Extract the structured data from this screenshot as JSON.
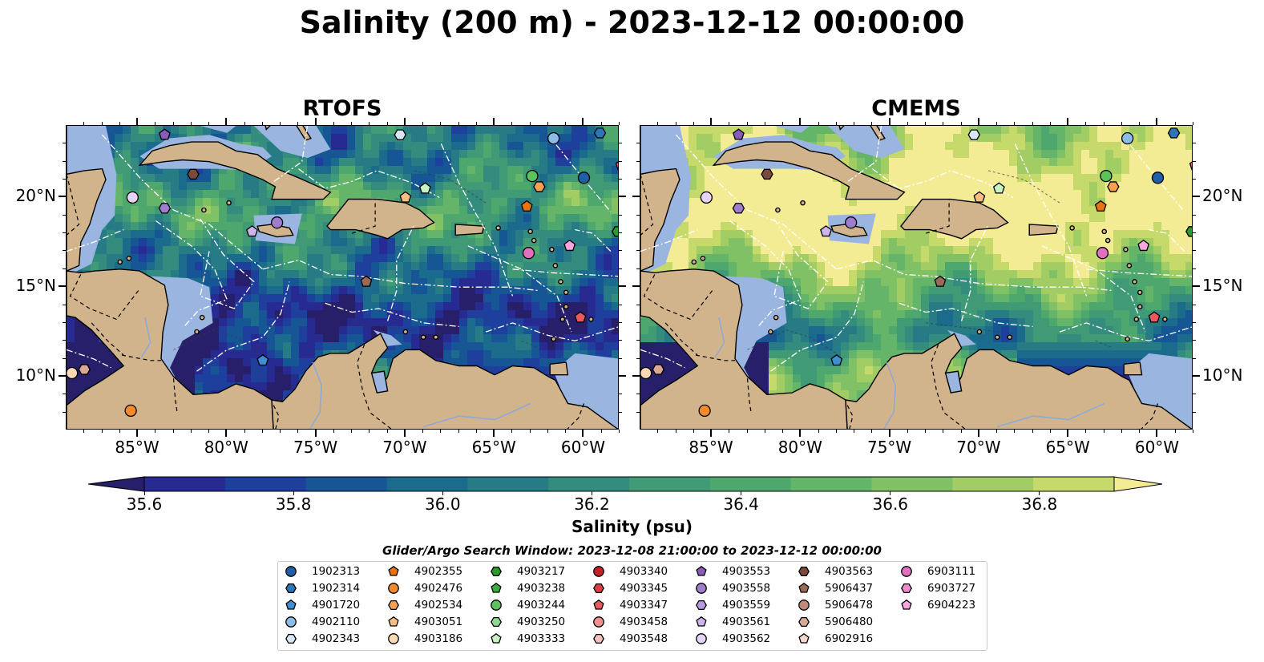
{
  "title": "Salinity (200 m) - 2023-12-12 00:00:00",
  "panels": [
    {
      "title": "RTOFS",
      "key": "rtofs"
    },
    {
      "title": "CMEMS",
      "key": "cmems"
    }
  ],
  "map": {
    "lon_range": [
      -89,
      -58
    ],
    "lat_range": [
      7,
      24
    ],
    "lon_ticks": [
      "85°W",
      "80°W",
      "75°W",
      "70°W",
      "65°W",
      "60°W"
    ],
    "lat_ticks": [
      "20°N",
      "15°N",
      "10°N"
    ],
    "land_color": "#d2b48c",
    "shelf_color": "#9ab5e0"
  },
  "colorbar": {
    "label": "Salinity (psu)",
    "range": [
      35.55,
      36.95
    ],
    "ticks": [
      "35.6",
      "35.8",
      "36.0",
      "36.2",
      "36.4",
      "36.6",
      "36.8"
    ],
    "colors": [
      "#281f6a",
      "#272a90",
      "#1f3f9c",
      "#165695",
      "#1a6b8c",
      "#267b85",
      "#338c7e",
      "#3f9a75",
      "#4ea86e",
      "#64b56a",
      "#80c166",
      "#a2cd65",
      "#c6da6c",
      "#f4ec94"
    ]
  },
  "legend": {
    "title": "Glider/Argo Search Window: 2023-12-08 21:00:00 to 2023-12-12 00:00:00",
    "items": [
      {
        "label": "1902313",
        "marker": "circle",
        "color": "#1f5fa8"
      },
      {
        "label": "1902314",
        "marker": "hexagon",
        "color": "#2e74b8"
      },
      {
        "label": "4901720",
        "marker": "pentagon",
        "color": "#3f8fd0"
      },
      {
        "label": "4902110",
        "marker": "circle",
        "color": "#8cbce8"
      },
      {
        "label": "4902343",
        "marker": "hexagon",
        "color": "#d6e8f8"
      },
      {
        "label": "4902355",
        "marker": "pentagon",
        "color": "#e8730c"
      },
      {
        "label": "4902476",
        "marker": "circle",
        "color": "#f48a2a"
      },
      {
        "label": "4902534",
        "marker": "hexagon",
        "color": "#f7a050"
      },
      {
        "label": "4903051",
        "marker": "pentagon",
        "color": "#fbbd82"
      },
      {
        "label": "4903186",
        "marker": "circle",
        "color": "#fdd9b5"
      },
      {
        "label": "4903217",
        "marker": "hexagon",
        "color": "#2a9a2a"
      },
      {
        "label": "4903238",
        "marker": "pentagon",
        "color": "#3cad3c"
      },
      {
        "label": "4903244",
        "marker": "circle",
        "color": "#5cc25c"
      },
      {
        "label": "4903250",
        "marker": "hexagon",
        "color": "#8fd88f"
      },
      {
        "label": "4903333",
        "marker": "pentagon",
        "color": "#c8f2c0"
      },
      {
        "label": "4903340",
        "marker": "circle",
        "color": "#c8202a"
      },
      {
        "label": "4903345",
        "marker": "hexagon",
        "color": "#dc3c44"
      },
      {
        "label": "4903347",
        "marker": "pentagon",
        "color": "#e85a60"
      },
      {
        "label": "4903458",
        "marker": "circle",
        "color": "#f2908e"
      },
      {
        "label": "4903548",
        "marker": "hexagon",
        "color": "#f8c0bc"
      },
      {
        "label": "4903553",
        "marker": "pentagon",
        "color": "#8a5ab8"
      },
      {
        "label": "4903558",
        "marker": "circle",
        "color": "#a07ccc"
      },
      {
        "label": "4903559",
        "marker": "hexagon",
        "color": "#b89ade"
      },
      {
        "label": "4903561",
        "marker": "pentagon",
        "color": "#cdb4ec"
      },
      {
        "label": "4903562",
        "marker": "circle",
        "color": "#e6d4f8"
      },
      {
        "label": "4903563",
        "marker": "hexagon",
        "color": "#7a4a3a"
      },
      {
        "label": "5906437",
        "marker": "pentagon",
        "color": "#9a6a58"
      },
      {
        "label": "5906478",
        "marker": "circle",
        "color": "#c08a7a"
      },
      {
        "label": "5906480",
        "marker": "hexagon",
        "color": "#d8a898"
      },
      {
        "label": "6902916",
        "marker": "pentagon",
        "color": "#f6d8cc"
      },
      {
        "label": "6903111",
        "marker": "circle",
        "color": "#e070c0"
      },
      {
        "label": "6903727",
        "marker": "hexagon",
        "color": "#ee8ad0"
      },
      {
        "label": "6904223",
        "marker": "pentagon",
        "color": "#f6a6dc"
      }
    ]
  },
  "floats": [
    {
      "lon": -83.5,
      "lat": 23.5,
      "marker": "pentagon",
      "color": "#8a5ab8"
    },
    {
      "lon": -70.3,
      "lat": 23.5,
      "marker": "hexagon",
      "color": "#d6e8f8"
    },
    {
      "lon": -61.7,
      "lat": 23.3,
      "marker": "circle",
      "color": "#8cbce8"
    },
    {
      "lon": -59.1,
      "lat": 23.6,
      "marker": "hexagon",
      "color": "#2e74b8"
    },
    {
      "lon": -81.9,
      "lat": 21.3,
      "marker": "hexagon",
      "color": "#7a4a3a"
    },
    {
      "lon": -62.9,
      "lat": 21.2,
      "marker": "circle",
      "color": "#5cc25c"
    },
    {
      "lon": -60.0,
      "lat": 21.1,
      "marker": "circle",
      "color": "#1f5fa8"
    },
    {
      "lon": -57.9,
      "lat": 21.8,
      "marker": "pentagon",
      "color": "#e85a60"
    },
    {
      "lon": -85.3,
      "lat": 20.0,
      "marker": "circle",
      "color": "#e6d4f8"
    },
    {
      "lon": -70.0,
      "lat": 20.0,
      "marker": "pentagon",
      "color": "#fbbd82"
    },
    {
      "lon": -68.9,
      "lat": 20.5,
      "marker": "pentagon",
      "color": "#c8f2c0"
    },
    {
      "lon": -62.5,
      "lat": 20.6,
      "marker": "hexagon",
      "color": "#f7a050"
    },
    {
      "lon": -63.2,
      "lat": 19.5,
      "marker": "pentagon",
      "color": "#e8730c"
    },
    {
      "lon": -83.5,
      "lat": 19.4,
      "marker": "hexagon",
      "color": "#a07ccc"
    },
    {
      "lon": -77.2,
      "lat": 18.6,
      "marker": "circle",
      "color": "#a07ccc"
    },
    {
      "lon": -78.6,
      "lat": 18.1,
      "marker": "pentagon",
      "color": "#cdb4ec"
    },
    {
      "lon": -60.8,
      "lat": 17.3,
      "marker": "pentagon",
      "color": "#f6a6dc"
    },
    {
      "lon": -63.1,
      "lat": 16.9,
      "marker": "circle",
      "color": "#e070c0"
    },
    {
      "lon": -58.1,
      "lat": 18.1,
      "marker": "hexagon",
      "color": "#2a9a2a"
    },
    {
      "lon": -72.2,
      "lat": 15.3,
      "marker": "pentagon",
      "color": "#9a6a58"
    },
    {
      "lon": -60.2,
      "lat": 13.3,
      "marker": "pentagon",
      "color": "#e85a60"
    },
    {
      "lon": -78.0,
      "lat": 10.9,
      "marker": "pentagon",
      "color": "#3f8fd0"
    },
    {
      "lon": -88.7,
      "lat": 10.2,
      "marker": "circle",
      "color": "#fdd9b5"
    },
    {
      "lon": -88.0,
      "lat": 10.4,
      "marker": "hexagon",
      "color": "#d8a898"
    },
    {
      "lon": -85.4,
      "lat": 8.1,
      "marker": "circle",
      "color": "#f48a2a"
    }
  ]
}
